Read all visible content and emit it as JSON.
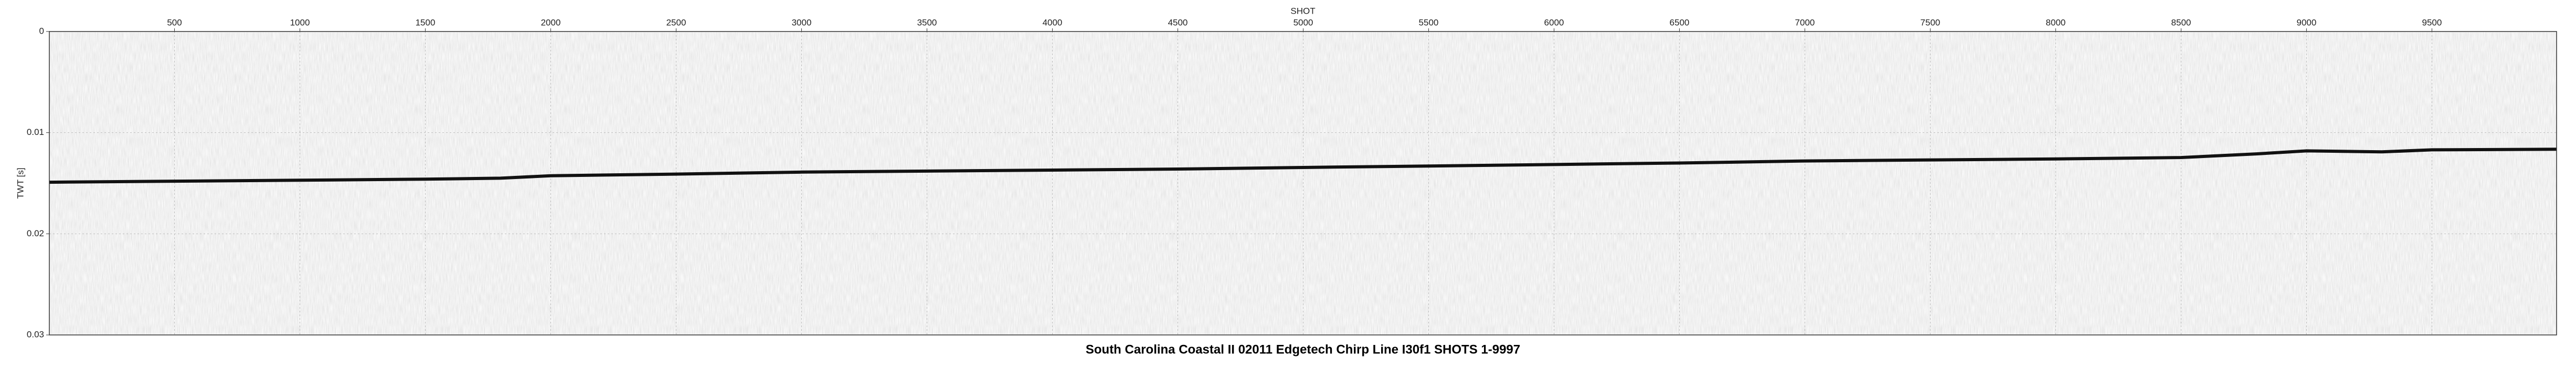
{
  "chart_data": {
    "type": "line",
    "title": "South Carolina Coastal II 02011 Edgetech Chirp Line I30f1 SHOTS 1-9997",
    "xlabel": "SHOT",
    "ylabel": "TWT [s]",
    "x": [
      1,
      500,
      1000,
      1500,
      1800,
      2000,
      2500,
      3000,
      3500,
      4000,
      4500,
      5000,
      5500,
      6000,
      6500,
      7000,
      7500,
      8000,
      8500,
      8800,
      9000,
      9300,
      9500,
      9997
    ],
    "values": [
      0.0149,
      0.0148,
      0.0147,
      0.0146,
      0.0145,
      0.01426,
      0.0141,
      0.0139,
      0.0138,
      0.0137,
      0.0136,
      0.01344,
      0.0133,
      0.01315,
      0.013,
      0.0128,
      0.0127,
      0.0126,
      0.01246,
      0.0121,
      0.0118,
      0.0119,
      0.0117,
      0.01164
    ],
    "color": "#111111",
    "xlim": [
      1,
      9997
    ],
    "ylim": [
      0,
      0.03
    ],
    "xticks": [
      500,
      1000,
      1500,
      2000,
      2500,
      3000,
      3500,
      4000,
      4500,
      5000,
      5500,
      6000,
      6500,
      7000,
      7500,
      8000,
      8500,
      9000,
      9500
    ],
    "yticks": [
      0,
      0.01,
      0.02,
      0.03
    ],
    "y_inverted": true,
    "grid": true
  }
}
